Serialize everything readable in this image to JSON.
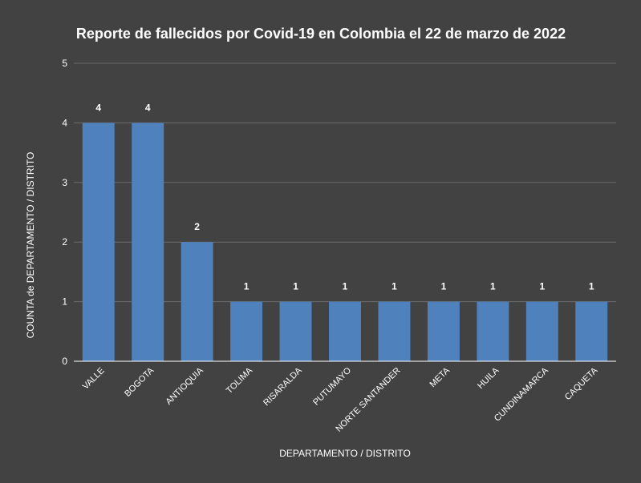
{
  "chart_data": {
    "type": "bar",
    "title": "Reporte de fallecidos por Covid-19 en Colombia el 22 de marzo de 2022",
    "xlabel": "DEPARTAMENTO / DISTRITO",
    "ylabel": "COUNTA de DEPARTAMENTO / DISTRITO",
    "categories": [
      "VALLE",
      "BOGOTA",
      "ANTIOQUIA",
      "TOLIMA",
      "RISARALDA",
      "PUTUMAYO",
      "NORTE SANTANDER",
      "META",
      "HUILA",
      "CUNDINAMARCA",
      "CAQUETA"
    ],
    "values": [
      4,
      4,
      2,
      1,
      1,
      1,
      1,
      1,
      1,
      1,
      1
    ],
    "ylim": [
      0,
      5
    ],
    "yticks": [
      "0",
      "1",
      "2",
      "3",
      "4",
      "5"
    ],
    "grid": true,
    "colors": {
      "background": "#424242",
      "bar": "#4f81bd",
      "grid": "#6b6b6b",
      "axis": "#ffffff",
      "text": "#ffffff"
    }
  }
}
